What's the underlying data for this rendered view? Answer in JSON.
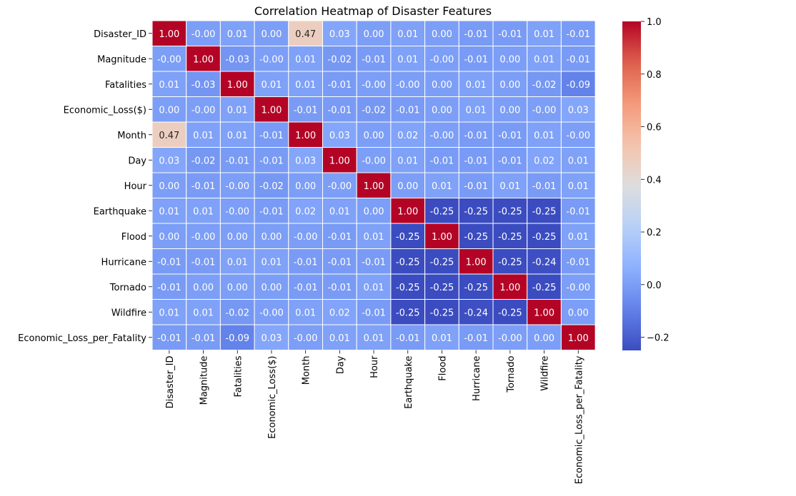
{
  "chart_data": {
    "type": "heatmap",
    "title": "Correlation Heatmap of Disaster Features",
    "xlabel": "",
    "ylabel": "",
    "labels": [
      "Disaster_ID",
      "Magnitude",
      "Fatalities",
      "Economic_Loss($)",
      "Month",
      "Day",
      "Hour",
      "Earthquake",
      "Flood",
      "Hurricane",
      "Tornado",
      "Wildfire",
      "Economic_Loss_per_Fatality"
    ],
    "value_labels": [
      [
        "1.00",
        "-0.00",
        "0.01",
        "0.00",
        "0.47",
        "0.03",
        "0.00",
        "0.01",
        "0.00",
        "-0.01",
        "-0.01",
        "0.01",
        "-0.01"
      ],
      [
        "-0.00",
        "1.00",
        "-0.03",
        "-0.00",
        "0.01",
        "-0.02",
        "-0.01",
        "0.01",
        "-0.00",
        "-0.01",
        "0.00",
        "0.01",
        "-0.01"
      ],
      [
        "0.01",
        "-0.03",
        "1.00",
        "0.01",
        "0.01",
        "-0.01",
        "-0.00",
        "-0.00",
        "0.00",
        "0.01",
        "0.00",
        "-0.02",
        "-0.09"
      ],
      [
        "0.00",
        "-0.00",
        "0.01",
        "1.00",
        "-0.01",
        "-0.01",
        "-0.02",
        "-0.01",
        "0.00",
        "0.01",
        "0.00",
        "-0.00",
        "0.03"
      ],
      [
        "0.47",
        "0.01",
        "0.01",
        "-0.01",
        "1.00",
        "0.03",
        "0.00",
        "0.02",
        "-0.00",
        "-0.01",
        "-0.01",
        "0.01",
        "-0.00"
      ],
      [
        "0.03",
        "-0.02",
        "-0.01",
        "-0.01",
        "0.03",
        "1.00",
        "-0.00",
        "0.01",
        "-0.01",
        "-0.01",
        "-0.01",
        "0.02",
        "0.01"
      ],
      [
        "0.00",
        "-0.01",
        "-0.00",
        "-0.02",
        "0.00",
        "-0.00",
        "1.00",
        "0.00",
        "0.01",
        "-0.01",
        "0.01",
        "-0.01",
        "0.01"
      ],
      [
        "0.01",
        "0.01",
        "-0.00",
        "-0.01",
        "0.02",
        "0.01",
        "0.00",
        "1.00",
        "-0.25",
        "-0.25",
        "-0.25",
        "-0.25",
        "-0.01"
      ],
      [
        "0.00",
        "-0.00",
        "0.00",
        "0.00",
        "-0.00",
        "-0.01",
        "0.01",
        "-0.25",
        "1.00",
        "-0.25",
        "-0.25",
        "-0.25",
        "0.01"
      ],
      [
        "-0.01",
        "-0.01",
        "0.01",
        "0.01",
        "-0.01",
        "-0.01",
        "-0.01",
        "-0.25",
        "-0.25",
        "1.00",
        "-0.25",
        "-0.24",
        "-0.01"
      ],
      [
        "-0.01",
        "0.00",
        "0.00",
        "0.00",
        "-0.01",
        "-0.01",
        "0.01",
        "-0.25",
        "-0.25",
        "-0.25",
        "1.00",
        "-0.25",
        "-0.00"
      ],
      [
        "0.01",
        "0.01",
        "-0.02",
        "-0.00",
        "0.01",
        "0.02",
        "-0.01",
        "-0.25",
        "-0.25",
        "-0.24",
        "-0.25",
        "1.00",
        "0.00"
      ],
      [
        "-0.01",
        "-0.01",
        "-0.09",
        "0.03",
        "-0.00",
        "0.01",
        "0.01",
        "-0.01",
        "0.01",
        "-0.01",
        "-0.00",
        "0.00",
        "1.00"
      ]
    ],
    "colormap": "coolwarm",
    "colorbar": {
      "min": -0.25,
      "max": 1.0,
      "ticks": [
        1.0,
        0.8,
        0.6,
        0.4,
        0.2,
        0.0,
        -0.2
      ],
      "tick_labels": [
        "1.0",
        "0.8",
        "0.6",
        "0.4",
        "0.2",
        "0.0",
        "−0.2"
      ]
    },
    "grid": true,
    "legend": "colorbar-right"
  }
}
